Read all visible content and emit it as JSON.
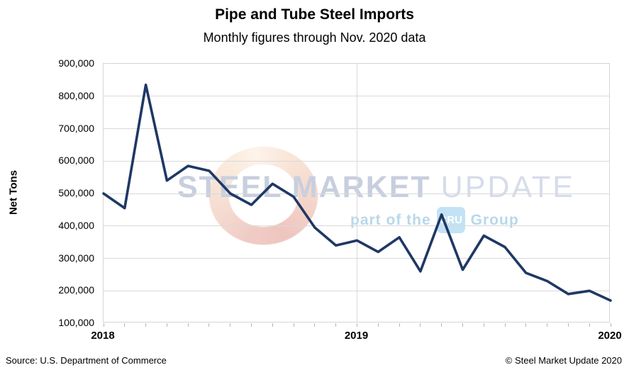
{
  "header": {
    "title": "Pipe and Tube Steel Imports",
    "subtitle": "Monthly figures through Nov. 2020 data"
  },
  "chart_data": {
    "type": "line",
    "title": "Pipe and Tube Steel Imports",
    "subtitle": "Monthly figures through Nov. 2020 data",
    "xlabel": "",
    "ylabel": "Net Tons",
    "ylim": [
      100000,
      900000
    ],
    "ytick_step": 100000,
    "y_tick_labels": [
      "100,000",
      "200,000",
      "300,000",
      "400,000",
      "500,000",
      "600,000",
      "700,000",
      "800,000",
      "900,000"
    ],
    "x_tick_labels": [
      "2018",
      "2019",
      "2020"
    ],
    "x_tick_indices": [
      0,
      12,
      24
    ],
    "minor_ticks_per_point": true,
    "grid": "horizontal gridlines at every 100,000; vertical gridline at each year boundary",
    "legend_position": "none",
    "series": [
      {
        "name": "Pipe and Tube Steel Imports (Net Tons)",
        "color": "#1f3864",
        "values": [
          500000,
          455000,
          835000,
          540000,
          585000,
          570000,
          500000,
          465000,
          530000,
          490000,
          395000,
          340000,
          355000,
          320000,
          365000,
          260000,
          435000,
          265000,
          370000,
          335000,
          255000,
          230000,
          190000,
          200000,
          170000
        ]
      }
    ]
  },
  "watermark": {
    "word1": "STEEL",
    "word2": "MARKET",
    "word3": "UPDATE",
    "tagline_prefix": "part of the",
    "tagline_box": "CRU",
    "tagline_suffix": "Group",
    "ring_colors": [
      "#f9e7d7",
      "#edbcb4"
    ],
    "text_color": "#c7cfdf",
    "tagline_color": "#b9d7ec"
  },
  "footer": {
    "source": "Source: U.S. Department of Commerce",
    "copyright": "© Steel Market Update 2020"
  },
  "colors": {
    "line": "#1f3864",
    "gridline": "#d9d9d9",
    "plot_border": "#d6d6d6",
    "tick": "#b7b7b7",
    "text": "#000000"
  }
}
